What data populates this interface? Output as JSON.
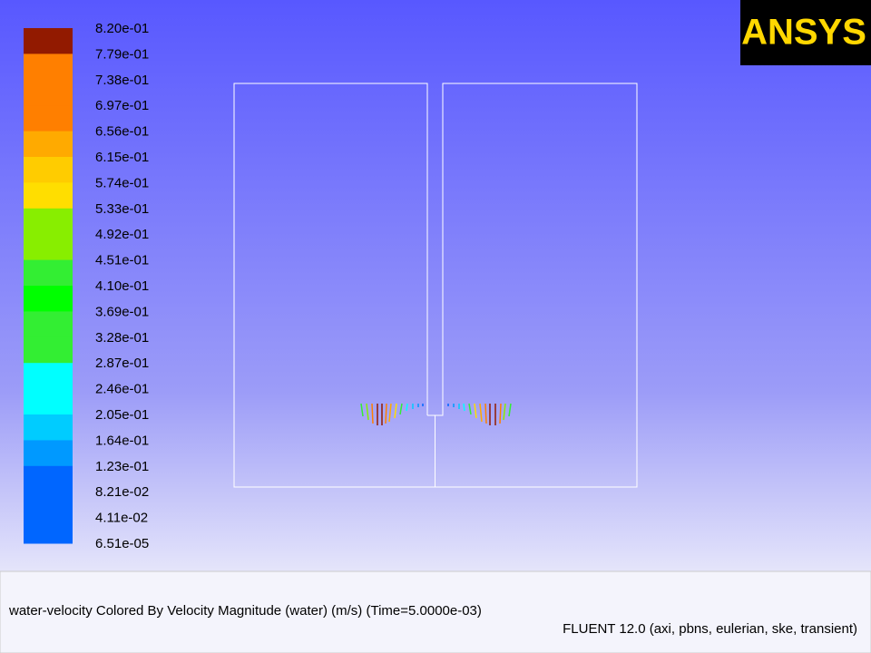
{
  "logo": "ANSYS",
  "colorbar": {
    "labels": [
      "8.20e-01",
      "7.79e-01",
      "7.38e-01",
      "6.97e-01",
      "6.56e-01",
      "6.15e-01",
      "5.74e-01",
      "5.33e-01",
      "4.92e-01",
      "4.51e-01",
      "4.10e-01",
      "3.69e-01",
      "3.28e-01",
      "2.87e-01",
      "2.46e-01",
      "2.05e-01",
      "1.64e-01",
      "1.23e-01",
      "8.21e-02",
      "4.11e-02",
      "6.51e-05"
    ],
    "colors": [
      "#921a00",
      "#ff7f00",
      "#ff7f00",
      "#ff7f00",
      "#ffaa00",
      "#ffcc00",
      "#ffde00",
      "#88ee00",
      "#88ee00",
      "#33ee33",
      "#00ff00",
      "#33ee33",
      "#33ee33",
      "#00ffff",
      "#00ffff",
      "#00ccff",
      "#0099ff",
      "#0066ff",
      "#0066ff",
      "#0066ff"
    ]
  },
  "footer": {
    "caption": "water-velocity Colored By Velocity Magnitude (water)  (m/s)  (Time=5.0000e-03)",
    "solver": "FLUENT 12.0 (axi, pbns, eulerian, ske, transient)"
  }
}
